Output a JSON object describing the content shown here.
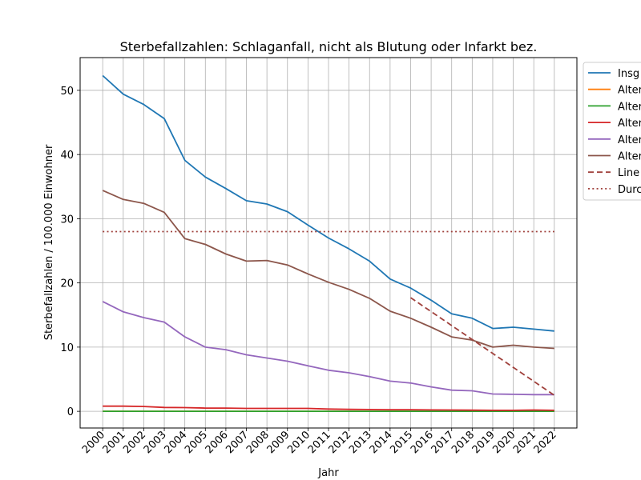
{
  "chart_data": {
    "type": "line",
    "title": "Sterbefallzahlen: Schlaganfall, nicht als Blutung oder Infarkt bez.",
    "xlabel": "Jahr",
    "ylabel": "Sterbefallzahlen / 100.000 Einwohner",
    "categories": [
      "2000",
      "2001",
      "2002",
      "2003",
      "2004",
      "2005",
      "2006",
      "2007",
      "2008",
      "2009",
      "2010",
      "2011",
      "2012",
      "2013",
      "2014",
      "2015",
      "2016",
      "2017",
      "2018",
      "2019",
      "2020",
      "2021",
      "2022"
    ],
    "ylim": [
      -2.6,
      55.1
    ],
    "yticks": [
      0,
      10,
      20,
      30,
      40,
      50
    ],
    "grid": true,
    "legend_position": "right (clipped)",
    "series": [
      {
        "name": "Insg",
        "color": "#1f77b4",
        "style": "solid",
        "values": [
          52.3,
          49.4,
          47.8,
          45.6,
          39.1,
          36.5,
          34.7,
          32.8,
          32.3,
          31.1,
          29.0,
          27.0,
          25.3,
          23.4,
          20.6,
          19.2,
          17.3,
          15.2,
          14.5,
          12.9,
          13.1,
          12.8,
          12.5
        ]
      },
      {
        "name": "Alter",
        "color": "#ff7f0e",
        "style": "solid",
        "values": [
          0.0,
          0.0,
          0.0,
          0.0,
          0.0,
          0.0,
          0.0,
          0.0,
          0.0,
          0.0,
          0.0,
          0.0,
          0.0,
          0.0,
          0.0,
          0.0,
          0.0,
          0.0,
          0.0,
          0.0,
          0.0,
          0.0,
          0.0
        ]
      },
      {
        "name": "Alter",
        "color": "#2ca02c",
        "style": "solid",
        "values": [
          0.0,
          0.0,
          0.0,
          0.0,
          0.0,
          0.0,
          0.0,
          0.0,
          0.0,
          0.0,
          0.0,
          0.0,
          0.0,
          0.0,
          0.0,
          0.0,
          0.0,
          0.0,
          0.0,
          0.0,
          0.0,
          0.0,
          0.0
        ]
      },
      {
        "name": "Alter",
        "color": "#d62728",
        "style": "solid",
        "values": [
          0.8,
          0.8,
          0.75,
          0.6,
          0.58,
          0.5,
          0.5,
          0.45,
          0.45,
          0.45,
          0.45,
          0.35,
          0.3,
          0.28,
          0.25,
          0.25,
          0.22,
          0.2,
          0.18,
          0.15,
          0.15,
          0.2,
          0.15
        ]
      },
      {
        "name": "Alter",
        "color": "#9467bd",
        "style": "solid",
        "values": [
          17.1,
          15.5,
          14.6,
          13.9,
          11.6,
          10.0,
          9.6,
          8.8,
          8.3,
          7.8,
          7.1,
          6.4,
          6.0,
          5.4,
          4.7,
          4.4,
          3.8,
          3.3,
          3.2,
          2.7,
          2.65,
          2.6,
          2.6
        ]
      },
      {
        "name": "Alter",
        "color": "#8c564b",
        "style": "solid",
        "values": [
          34.4,
          33.0,
          32.4,
          31.0,
          26.9,
          26.0,
          24.5,
          23.4,
          23.5,
          22.8,
          21.4,
          20.1,
          19.0,
          17.6,
          15.6,
          14.5,
          13.1,
          11.6,
          11.1,
          10.0,
          10.3,
          10.0,
          9.8
        ]
      },
      {
        "name": "Line",
        "color": "#a0413c",
        "style": "dashed",
        "x": [
          "2015",
          "2022"
        ],
        "values": [
          17.7,
          2.5
        ]
      },
      {
        "name": "Durc",
        "color": "#a0413c",
        "style": "dotted",
        "x": [
          "2000",
          "2022"
        ],
        "values": [
          28.0,
          28.0
        ]
      }
    ]
  }
}
